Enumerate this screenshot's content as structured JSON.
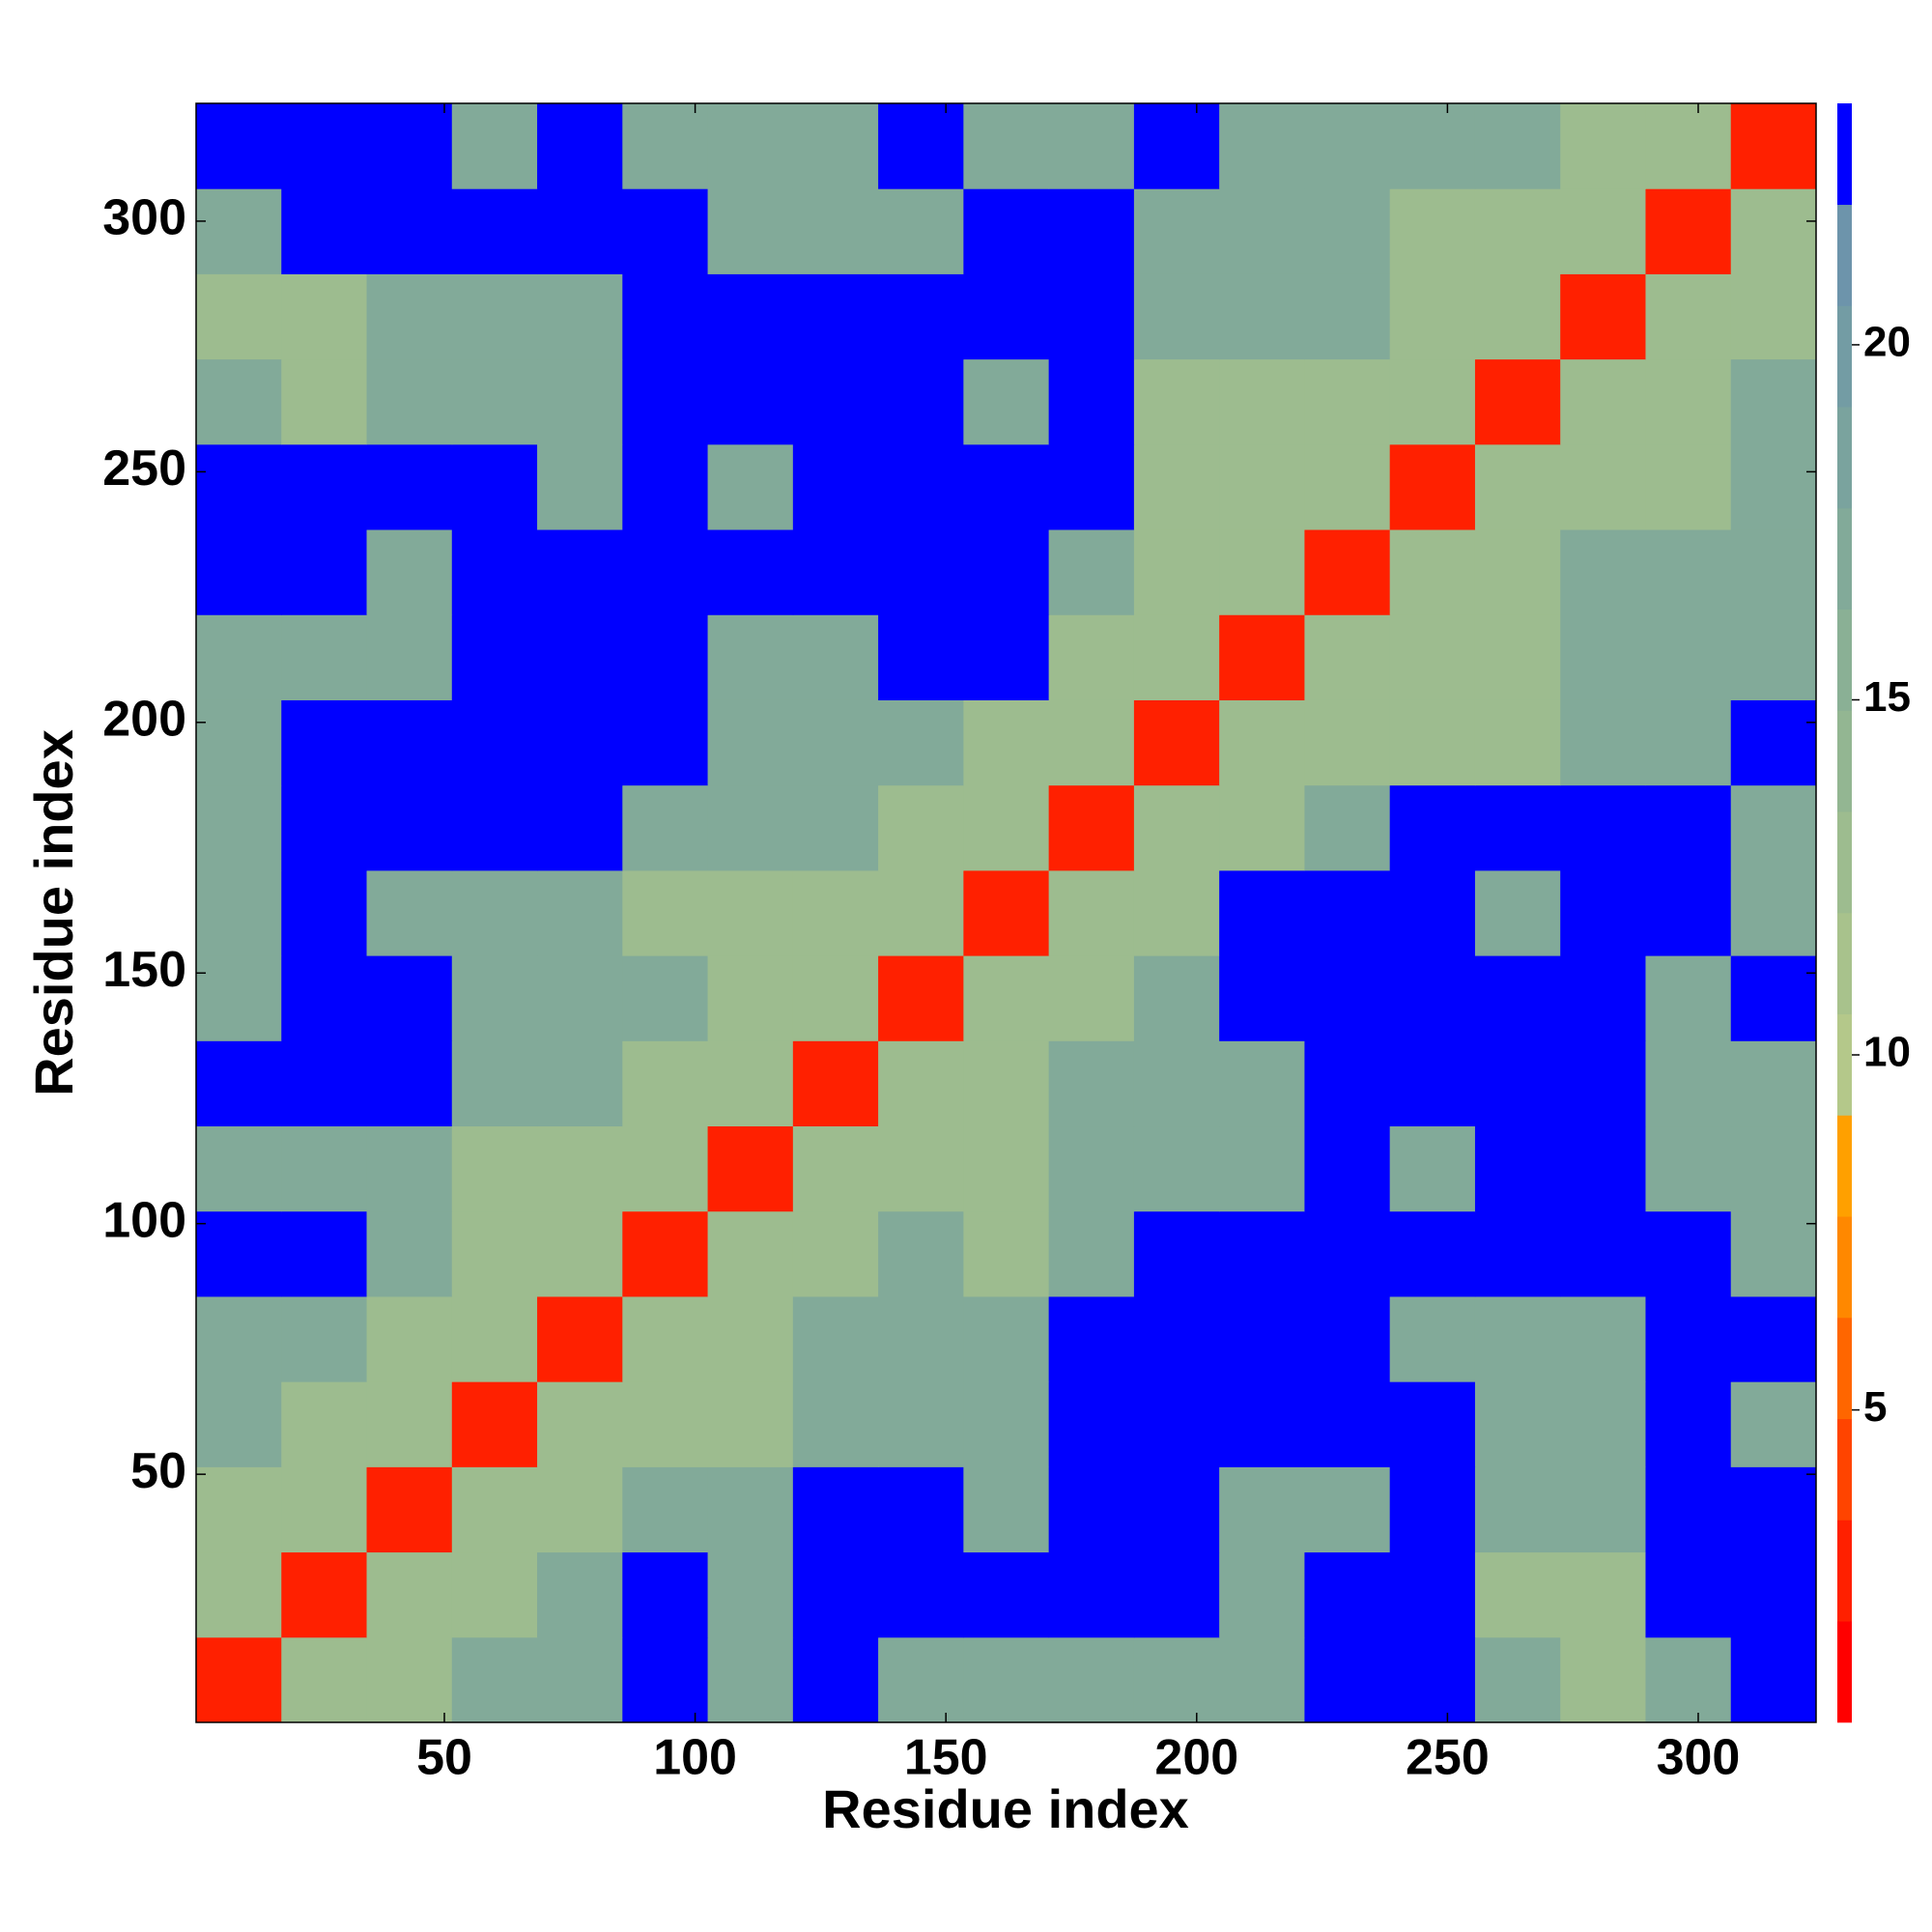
{
  "chart_data": {
    "type": "heatmap",
    "xlabel": "Residue index",
    "ylabel": "Residue index",
    "x_bins": [
      0.5,
      17.5,
      34.5,
      51.5,
      68.5,
      85.5,
      102.5,
      119.5,
      136.5,
      153.5,
      170.5,
      187.5,
      204.5,
      221.5,
      238.5,
      255.5,
      272.5,
      289.5,
      306.5,
      323.5
    ],
    "y_bins": [
      0.5,
      17.5,
      34.5,
      51.5,
      68.5,
      85.5,
      102.5,
      119.5,
      136.5,
      153.5,
      170.5,
      187.5,
      204.5,
      221.5,
      238.5,
      255.5,
      272.5,
      289.5,
      306.5,
      323.5
    ],
    "xlim": [
      0.5,
      323.5
    ],
    "ylim": [
      0.5,
      323.5
    ],
    "xticks": [
      50,
      100,
      150,
      200,
      250,
      300
    ],
    "yticks": [
      50,
      100,
      150,
      200,
      250,
      300
    ],
    "z": [
      [
        3,
        12,
        12,
        17,
        17,
        23,
        17,
        23,
        17,
        17,
        17,
        17,
        17,
        23,
        23,
        17,
        12,
        17,
        23
      ],
      [
        12,
        3,
        12,
        12,
        17,
        23,
        17,
        23,
        23,
        23,
        23,
        23,
        17,
        23,
        23,
        12,
        12,
        23,
        23
      ],
      [
        12,
        12,
        3,
        12,
        12,
        17,
        17,
        23,
        23,
        17,
        23,
        23,
        17,
        17,
        23,
        17,
        17,
        23,
        23
      ],
      [
        17,
        12,
        12,
        3,
        12,
        12,
        12,
        17,
        17,
        17,
        23,
        23,
        23,
        23,
        23,
        17,
        17,
        23,
        17
      ],
      [
        17,
        17,
        12,
        12,
        3,
        12,
        12,
        17,
        17,
        17,
        23,
        23,
        23,
        23,
        17,
        17,
        17,
        23,
        23
      ],
      [
        23,
        23,
        17,
        12,
        12,
        3,
        12,
        12,
        17,
        12,
        17,
        23,
        23,
        23,
        23,
        23,
        23,
        23,
        17
      ],
      [
        17,
        17,
        17,
        12,
        12,
        12,
        3,
        12,
        12,
        12,
        17,
        17,
        17,
        23,
        17,
        23,
        23,
        17,
        17
      ],
      [
        23,
        23,
        23,
        17,
        17,
        12,
        12,
        3,
        12,
        12,
        17,
        17,
        17,
        23,
        23,
        23,
        23,
        17,
        17
      ],
      [
        17,
        23,
        23,
        17,
        17,
        17,
        12,
        12,
        3,
        12,
        12,
        17,
        23,
        23,
        23,
        23,
        23,
        17,
        23
      ],
      [
        17,
        23,
        17,
        17,
        17,
        12,
        12,
        12,
        12,
        3,
        12,
        12,
        23,
        23,
        23,
        17,
        23,
        23,
        17
      ],
      [
        17,
        23,
        23,
        23,
        23,
        17,
        17,
        17,
        12,
        12,
        3,
        12,
        12,
        17,
        23,
        23,
        23,
        23,
        17
      ],
      [
        17,
        23,
        23,
        23,
        23,
        23,
        17,
        17,
        17,
        12,
        12,
        3,
        12,
        12,
        12,
        12,
        17,
        17,
        23
      ],
      [
        17,
        17,
        17,
        23,
        23,
        23,
        17,
        17,
        23,
        23,
        12,
        12,
        3,
        12,
        12,
        12,
        17,
        17,
        17
      ],
      [
        23,
        23,
        17,
        23,
        23,
        23,
        23,
        23,
        23,
        23,
        17,
        12,
        12,
        3,
        12,
        12,
        17,
        17,
        17
      ],
      [
        23,
        23,
        23,
        23,
        17,
        23,
        17,
        23,
        23,
        23,
        23,
        12,
        12,
        12,
        3,
        12,
        12,
        12,
        17
      ],
      [
        17,
        12,
        17,
        17,
        17,
        23,
        23,
        23,
        23,
        17,
        23,
        12,
        12,
        12,
        12,
        3,
        12,
        12,
        17
      ],
      [
        12,
        12,
        17,
        17,
        17,
        23,
        23,
        23,
        23,
        23,
        23,
        17,
        17,
        17,
        12,
        12,
        3,
        12,
        12
      ],
      [
        17,
        23,
        23,
        23,
        23,
        23,
        17,
        17,
        17,
        23,
        23,
        17,
        17,
        17,
        12,
        12,
        12,
        3,
        12
      ],
      [
        23,
        23,
        23,
        17,
        23,
        17,
        17,
        17,
        23,
        17,
        17,
        23,
        17,
        17,
        17,
        17,
        12,
        12,
        3
      ]
    ],
    "colorbar": {
      "lim": [
        0.6,
        23.4
      ],
      "levels": [
        0.6,
        2.025,
        3.45,
        4.875,
        6.3,
        7.725,
        9.15,
        10.575,
        12,
        13.425,
        14.85,
        16.275,
        17.7,
        19.125,
        20.55,
        21.975,
        23.4
      ],
      "colors": [
        "#ff0000",
        "#ff2000",
        "#ff4400",
        "#ff6600",
        "#ff8800",
        "#ffa000",
        "#b4c88a",
        "#a8c28c",
        "#9dbc8f",
        "#93b692",
        "#8ab095",
        "#82aa99",
        "#7aa39e",
        "#739ca4",
        "#6d94ab",
        "#0000ff"
      ],
      "ticks": [
        5,
        10,
        15,
        20
      ]
    }
  }
}
